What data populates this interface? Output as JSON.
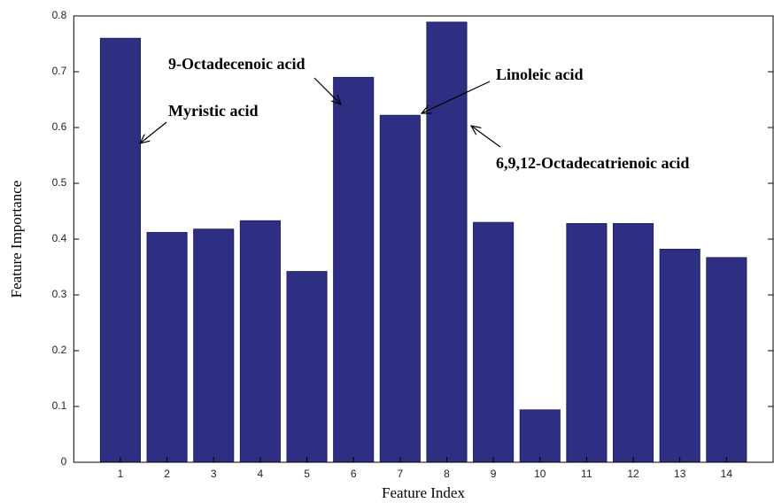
{
  "chart_data": {
    "type": "bar",
    "xlabel": "Feature Index",
    "ylabel": "Feature Importance",
    "x": [
      1,
      2,
      3,
      4,
      5,
      6,
      7,
      8,
      9,
      10,
      11,
      12,
      13,
      14
    ],
    "values": [
      0.76,
      0.412,
      0.418,
      0.433,
      0.342,
      0.69,
      0.622,
      0.789,
      0.43,
      0.094,
      0.428,
      0.428,
      0.382,
      0.367
    ],
    "color": "#2e2e82",
    "xlim": [
      0,
      15
    ],
    "xticks": [
      1,
      2,
      3,
      4,
      5,
      6,
      7,
      8,
      9,
      10,
      11,
      12,
      13,
      14
    ],
    "ylim": [
      0,
      0.8
    ],
    "yticks": [
      0,
      0.1,
      0.2,
      0.3,
      0.4,
      0.5,
      0.6,
      0.7,
      0.8
    ],
    "annotations": [
      "Myristic acid",
      "9-Octadecenoic acid",
      "Linoleic acid",
      "6,9,12-Octadecatrienoic acid"
    ]
  }
}
